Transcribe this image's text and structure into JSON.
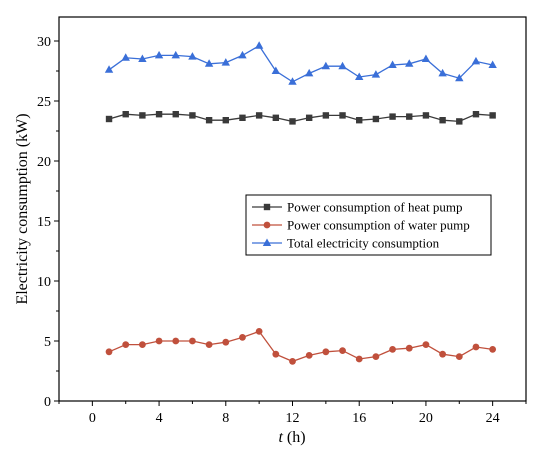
{
  "chart_data": {
    "type": "line",
    "title": "",
    "xlabel_italic": "t",
    "xlabel_rest": " (h)",
    "ylabel": "Electricity consumption (kW)",
    "xlim": [
      -2,
      26
    ],
    "ylim": [
      0,
      32
    ],
    "xticks": [
      0,
      4,
      8,
      12,
      16,
      20,
      24
    ],
    "yticks": [
      0,
      5,
      10,
      15,
      20,
      25,
      30
    ],
    "grid": false,
    "legend_position": "center-right",
    "x": [
      1,
      2,
      3,
      4,
      5,
      6,
      7,
      8,
      9,
      10,
      11,
      12,
      13,
      14,
      15,
      16,
      17,
      18,
      19,
      20,
      21,
      22,
      23,
      24
    ],
    "series": [
      {
        "name": "Power consumption of heat pump",
        "color": "#3a3a3a",
        "marker": "square",
        "values": [
          23.5,
          23.9,
          23.8,
          23.9,
          23.9,
          23.8,
          23.4,
          23.4,
          23.6,
          23.8,
          23.6,
          23.3,
          23.6,
          23.8,
          23.8,
          23.4,
          23.5,
          23.7,
          23.7,
          23.8,
          23.4,
          23.3,
          23.9,
          23.8
        ]
      },
      {
        "name": "Power consumption of water pump",
        "color": "#c0503c",
        "marker": "circle",
        "values": [
          4.1,
          4.7,
          4.7,
          5.0,
          5.0,
          5.0,
          4.7,
          4.9,
          5.3,
          5.8,
          3.9,
          3.3,
          3.8,
          4.1,
          4.2,
          3.5,
          3.7,
          4.3,
          4.4,
          4.7,
          3.9,
          3.7,
          4.5,
          4.3
        ]
      },
      {
        "name": "Total electricity consumption",
        "color": "#3a6fd8",
        "marker": "triangle",
        "values": [
          27.6,
          28.6,
          28.5,
          28.8,
          28.8,
          28.7,
          28.1,
          28.2,
          28.8,
          29.6,
          27.5,
          26.6,
          27.3,
          27.9,
          27.9,
          27.0,
          27.2,
          28.0,
          28.1,
          28.5,
          27.3,
          26.9,
          28.3,
          28.0
        ]
      }
    ]
  }
}
